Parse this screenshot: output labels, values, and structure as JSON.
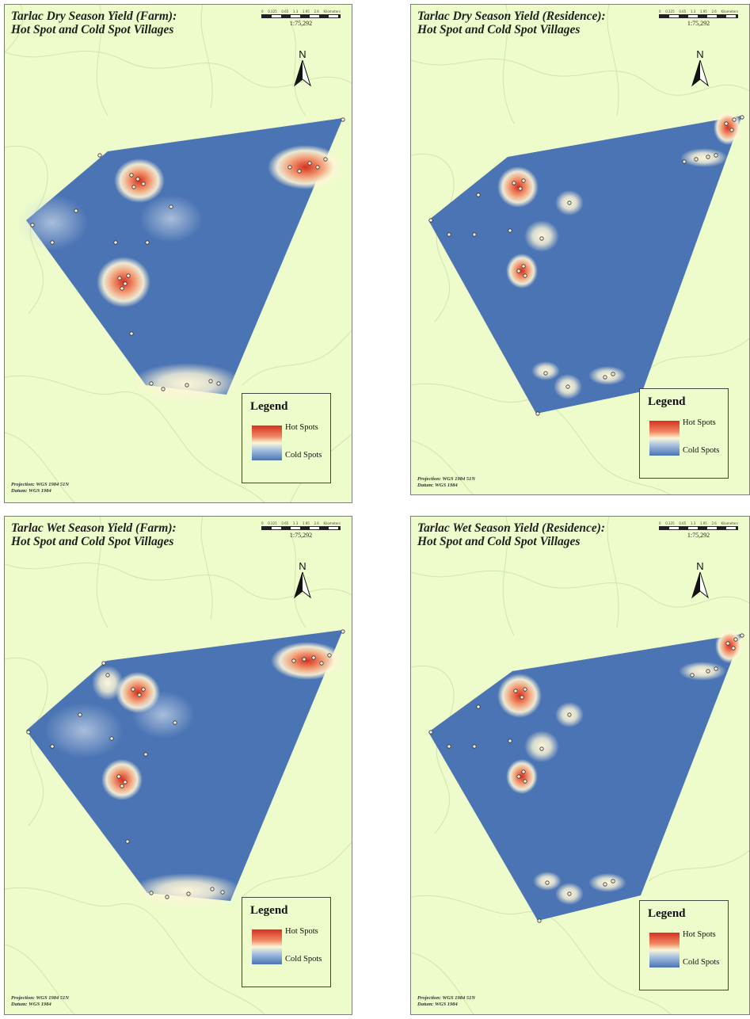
{
  "map_common": {
    "scale_ticks": [
      "0",
      "0.325",
      "0.65",
      "1.3",
      "1.95",
      "2.6"
    ],
    "scale_unit": "Kilometers",
    "scale_ratio": "1:75,292",
    "north_label": "N",
    "legend_title": "Legend",
    "legend_hot": "Hot Spots",
    "legend_cold": "Cold Spots",
    "projection": "Projection: WGS 1984 51N",
    "datum": "Datum: WGS 1984",
    "colors": {
      "land": "#eefbcb",
      "boundary_lines": "#cfe6ab",
      "cold_spot": "#4a74b4",
      "hot_spot": "#d7301f",
      "neutral": "#fdf6d8"
    }
  },
  "maps": [
    {
      "title_line1": "Tarlac Dry Season Yield (Farm):",
      "title_line2": "Hot Spot and Cold Spot Villages"
    },
    {
      "title_line1": "Tarlac Dry Season Yield (Residence):",
      "title_line2": "Hot Spot and Cold Spot Villages"
    },
    {
      "title_line1": "Tarlac Wet Season Yield (Farm):",
      "title_line2": "Hot Spot and Cold Spot Villages"
    },
    {
      "title_line1": "Tarlac Wet Season Yield (Residence):",
      "title_line2": "Hot Spot and Cold Spot Villages"
    }
  ]
}
